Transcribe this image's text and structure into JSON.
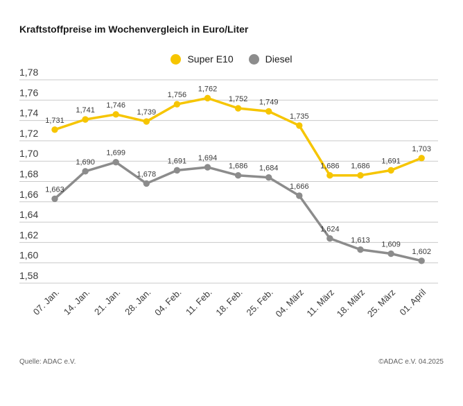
{
  "title": "Kraftstoffpreise im Wochenvergleich in Euro/Liter",
  "footer": {
    "source": "Quelle: ADAC e.V.",
    "copyright": "©ADAC e.V. 04.2025"
  },
  "colors": {
    "super_e10": "#F6C500",
    "diesel": "#8C8C8C",
    "gridline": "#c9c9c9",
    "tick_label": "#3a3a3a",
    "value_label": "#3a3a3a"
  },
  "chart_data": {
    "type": "line",
    "title": "Kraftstoffpreise im Wochenvergleich in Euro/Liter",
    "xlabel": "",
    "ylabel": "Euro/Liter",
    "ylim": [
      1.58,
      1.78
    ],
    "ytick_step": 0.02,
    "ytick_labels": [
      "1,78",
      "1,76",
      "1,74",
      "1,72",
      "1,70",
      "1,68",
      "1,66",
      "1,64",
      "1,62",
      "1,60",
      "1,58"
    ],
    "grid": true,
    "legend_position": "top-center",
    "categories": [
      "07. Jan.",
      "14. Jan.",
      "21. Jan.",
      "28. Jan.",
      "04. Feb.",
      "11. Feb.",
      "18. Feb.",
      "25. Feb.",
      "04. März",
      "11. März",
      "18. März",
      "25. März",
      "01. April"
    ],
    "series": [
      {
        "name": "Super E10",
        "color": "#F6C500",
        "values": [
          1.731,
          1.741,
          1.746,
          1.739,
          1.756,
          1.762,
          1.752,
          1.749,
          1.735,
          1.686,
          1.686,
          1.691,
          1.703
        ]
      },
      {
        "name": "Diesel",
        "color": "#8C8C8C",
        "values": [
          1.663,
          1.69,
          1.699,
          1.678,
          1.691,
          1.694,
          1.686,
          1.684,
          1.666,
          1.624,
          1.613,
          1.609,
          1.602
        ]
      }
    ]
  }
}
